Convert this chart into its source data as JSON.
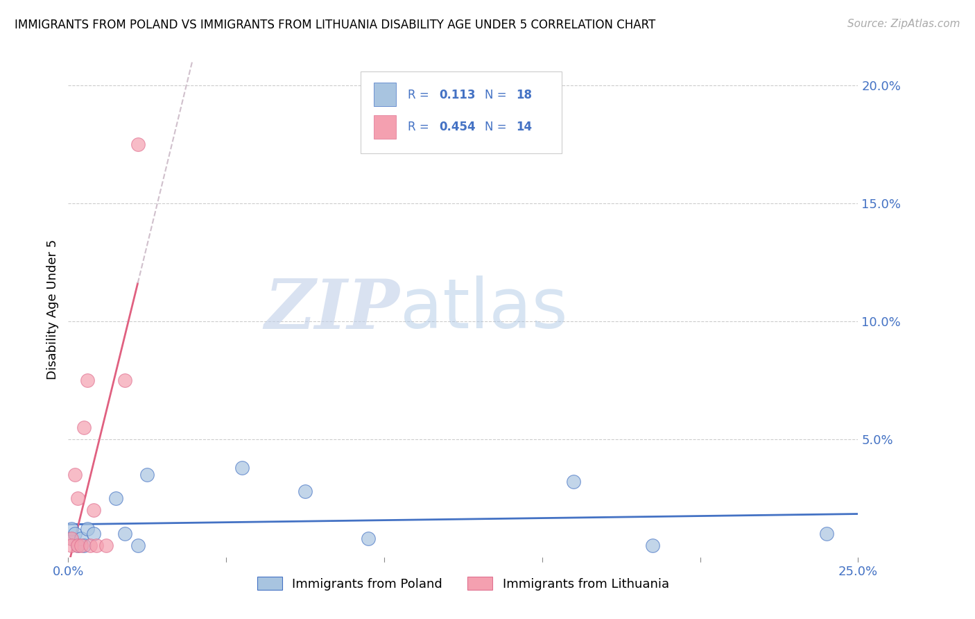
{
  "title": "IMMIGRANTS FROM POLAND VS IMMIGRANTS FROM LITHUANIA DISABILITY AGE UNDER 5 CORRELATION CHART",
  "source": "Source: ZipAtlas.com",
  "ylabel": "Disability Age Under 5",
  "watermark_zip": "ZIP",
  "watermark_atlas": "atlas",
  "xlim": [
    0.0,
    0.25
  ],
  "ylim": [
    0.0,
    0.21
  ],
  "poland_color": "#a8c4e0",
  "poland_edge_color": "#4472c4",
  "lithuania_color": "#f4a0b0",
  "lithuania_edge_color": "#e07090",
  "poland_line_color": "#4472c4",
  "lithuania_line_color": "#e06080",
  "lith_dash_color": "#d0c0cc",
  "legend_color": "#4472c4",
  "legend_R_poland": "0.113",
  "legend_N_poland": "18",
  "legend_R_lithuania": "0.454",
  "legend_N_lithuania": "14",
  "poland_x": [
    0.001,
    0.001,
    0.002,
    0.003,
    0.004,
    0.005,
    0.006,
    0.008,
    0.015,
    0.018,
    0.022,
    0.025,
    0.055,
    0.075,
    0.095,
    0.16,
    0.185,
    0.24
  ],
  "poland_y": [
    0.008,
    0.012,
    0.01,
    0.005,
    0.008,
    0.005,
    0.012,
    0.01,
    0.025,
    0.01,
    0.005,
    0.035,
    0.038,
    0.028,
    0.008,
    0.032,
    0.005,
    0.01
  ],
  "lithuania_x": [
    0.001,
    0.001,
    0.002,
    0.003,
    0.003,
    0.004,
    0.005,
    0.006,
    0.007,
    0.008,
    0.009,
    0.012,
    0.018,
    0.022
  ],
  "lithuania_y": [
    0.008,
    0.005,
    0.035,
    0.005,
    0.025,
    0.005,
    0.055,
    0.075,
    0.005,
    0.02,
    0.005,
    0.005,
    0.075,
    0.175
  ]
}
